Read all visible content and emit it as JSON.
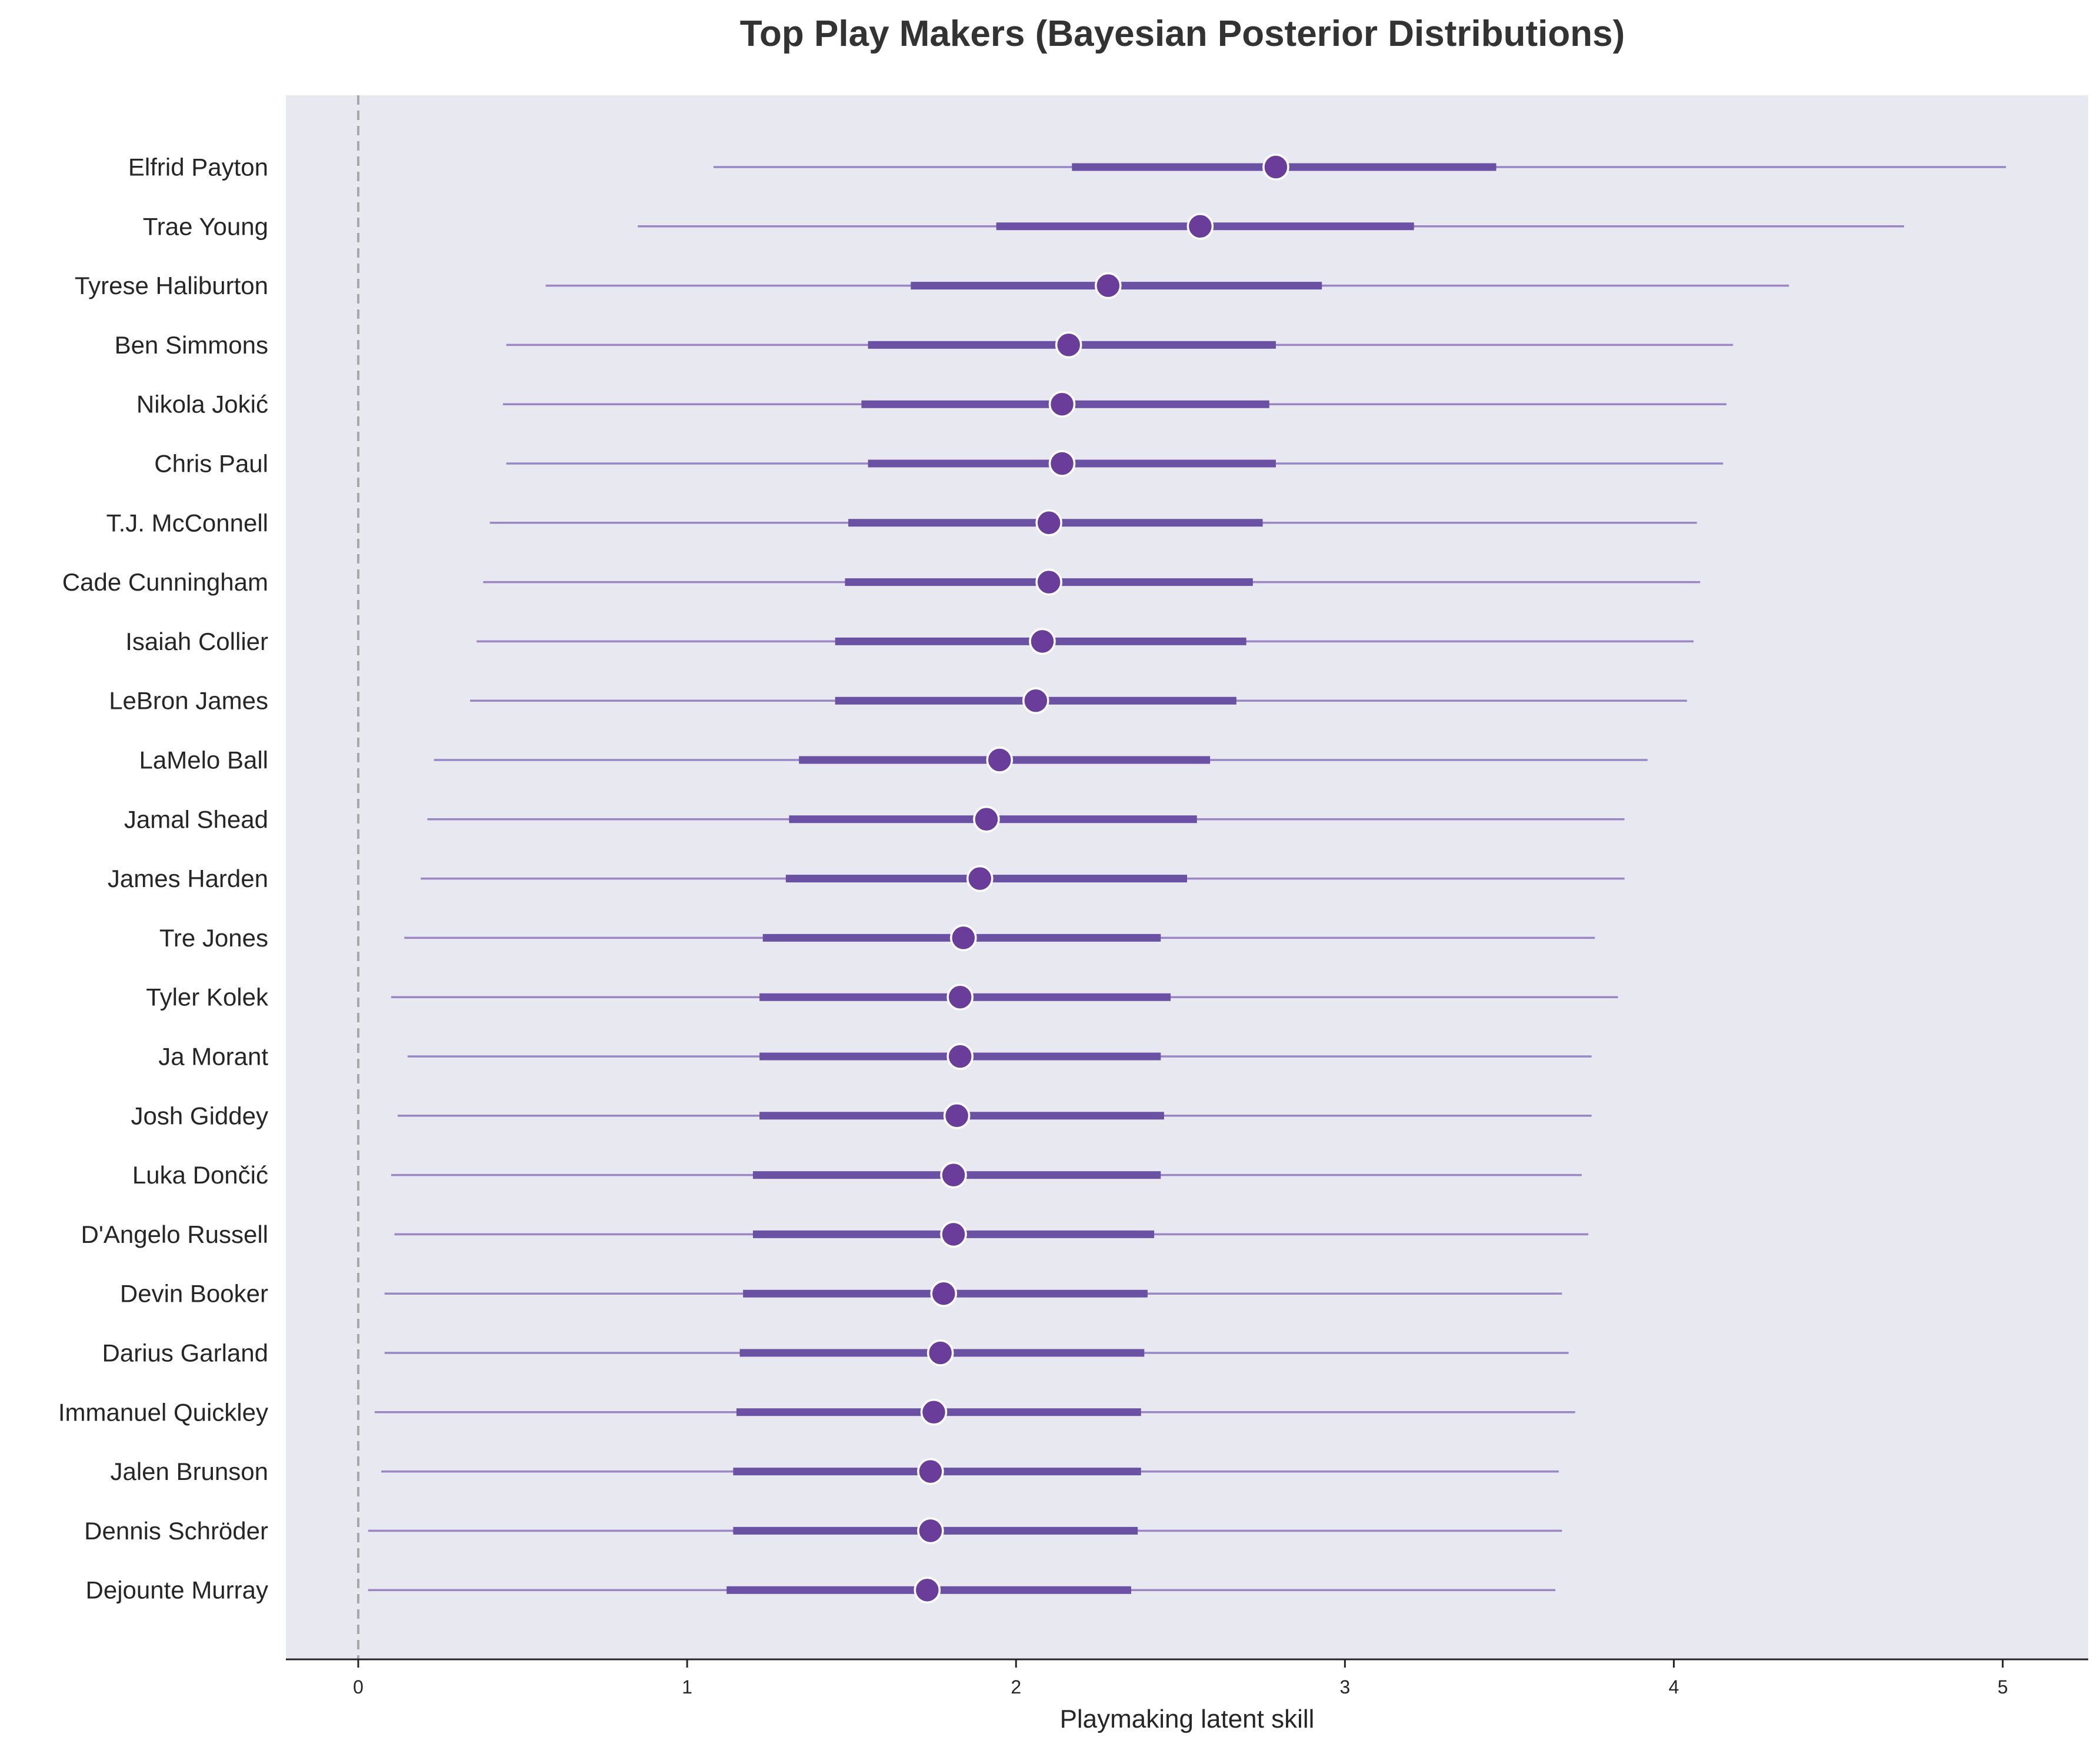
{
  "chart_data": {
    "type": "forest",
    "title": "Top Play Makers (Bayesian Posterior Distributions)",
    "xlabel": "Playmaking latent skill",
    "ylabel": "",
    "xlim": [
      -0.22,
      5.26
    ],
    "xticks": [
      0,
      1,
      2,
      3,
      4,
      5
    ],
    "reference_line_x": 0,
    "grid": false,
    "colors": {
      "background": "#e8e8f1",
      "outer_interval": "#9a86c5",
      "inner_interval": "#6a51a3",
      "point": "#6a3d9a",
      "point_edge": "#ffffff",
      "reference_line": "#a8a8a8",
      "axis": "#262626"
    },
    "players": [
      {
        "name": "Elfrid Payton",
        "median": 2.79,
        "inner": [
          2.17,
          3.46
        ],
        "outer": [
          1.08,
          5.01
        ]
      },
      {
        "name": "Trae Young",
        "median": 2.56,
        "inner": [
          1.94,
          3.21
        ],
        "outer": [
          0.85,
          4.7
        ]
      },
      {
        "name": "Tyrese Haliburton",
        "median": 2.28,
        "inner": [
          1.68,
          2.93
        ],
        "outer": [
          0.57,
          4.35
        ]
      },
      {
        "name": "Ben Simmons",
        "median": 2.16,
        "inner": [
          1.55,
          2.79
        ],
        "outer": [
          0.45,
          4.18
        ]
      },
      {
        "name": "Nikola Jokić",
        "median": 2.14,
        "inner": [
          1.53,
          2.77
        ],
        "outer": [
          0.44,
          4.16
        ]
      },
      {
        "name": "Chris Paul",
        "median": 2.14,
        "inner": [
          1.55,
          2.79
        ],
        "outer": [
          0.45,
          4.15
        ]
      },
      {
        "name": "T.J. McConnell",
        "median": 2.1,
        "inner": [
          1.49,
          2.75
        ],
        "outer": [
          0.4,
          4.07
        ]
      },
      {
        "name": "Cade Cunningham",
        "median": 2.1,
        "inner": [
          1.48,
          2.72
        ],
        "outer": [
          0.38,
          4.08
        ]
      },
      {
        "name": "Isaiah Collier",
        "median": 2.08,
        "inner": [
          1.45,
          2.7
        ],
        "outer": [
          0.36,
          4.06
        ]
      },
      {
        "name": "LeBron James",
        "median": 2.06,
        "inner": [
          1.45,
          2.67
        ],
        "outer": [
          0.34,
          4.04
        ]
      },
      {
        "name": "LaMelo Ball",
        "median": 1.95,
        "inner": [
          1.34,
          2.59
        ],
        "outer": [
          0.23,
          3.92
        ]
      },
      {
        "name": "Jamal Shead",
        "median": 1.91,
        "inner": [
          1.31,
          2.55
        ],
        "outer": [
          0.21,
          3.85
        ]
      },
      {
        "name": "James Harden",
        "median": 1.89,
        "inner": [
          1.3,
          2.52
        ],
        "outer": [
          0.19,
          3.85
        ]
      },
      {
        "name": "Tre Jones",
        "median": 1.84,
        "inner": [
          1.23,
          2.44
        ],
        "outer": [
          0.14,
          3.76
        ]
      },
      {
        "name": "Tyler Kolek",
        "median": 1.83,
        "inner": [
          1.22,
          2.47
        ],
        "outer": [
          0.1,
          3.83
        ]
      },
      {
        "name": "Ja Morant",
        "median": 1.83,
        "inner": [
          1.22,
          2.44
        ],
        "outer": [
          0.15,
          3.75
        ]
      },
      {
        "name": "Josh Giddey",
        "median": 1.82,
        "inner": [
          1.22,
          2.45
        ],
        "outer": [
          0.12,
          3.75
        ]
      },
      {
        "name": "Luka Dončić",
        "median": 1.81,
        "inner": [
          1.2,
          2.44
        ],
        "outer": [
          0.1,
          3.72
        ]
      },
      {
        "name": "D'Angelo Russell",
        "median": 1.81,
        "inner": [
          1.2,
          2.42
        ],
        "outer": [
          0.11,
          3.74
        ]
      },
      {
        "name": "Devin Booker",
        "median": 1.78,
        "inner": [
          1.17,
          2.4
        ],
        "outer": [
          0.08,
          3.66
        ]
      },
      {
        "name": "Darius Garland",
        "median": 1.77,
        "inner": [
          1.16,
          2.39
        ],
        "outer": [
          0.08,
          3.68
        ]
      },
      {
        "name": "Immanuel Quickley",
        "median": 1.75,
        "inner": [
          1.15,
          2.38
        ],
        "outer": [
          0.05,
          3.7
        ]
      },
      {
        "name": "Jalen Brunson",
        "median": 1.74,
        "inner": [
          1.14,
          2.38
        ],
        "outer": [
          0.07,
          3.65
        ]
      },
      {
        "name": "Dennis Schröder",
        "median": 1.74,
        "inner": [
          1.14,
          2.37
        ],
        "outer": [
          0.03,
          3.66
        ]
      },
      {
        "name": "Dejounte Murray",
        "median": 1.73,
        "inner": [
          1.12,
          2.35
        ],
        "outer": [
          0.03,
          3.64
        ]
      }
    ]
  }
}
